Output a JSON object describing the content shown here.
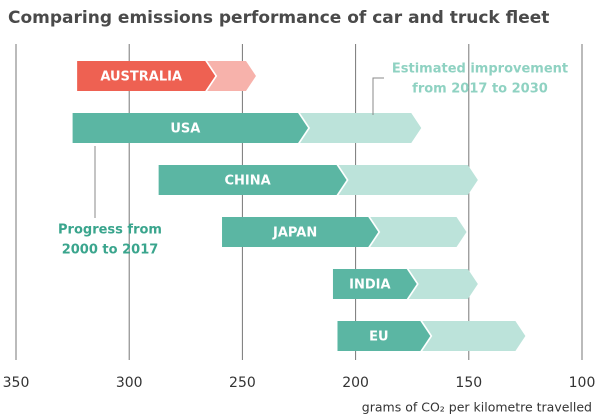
{
  "chart_data": {
    "type": "range-arrow",
    "title": "Comparing emissions performance of car and truck fleet",
    "x_label": "grams of CO₂ per kilometre travelled",
    "categories": [
      "AUSTRALIA",
      "USA",
      "CHINA",
      "JAPAN",
      "INDIA",
      "EU"
    ],
    "series": [
      {
        "name": [
          "Progress from",
          "2000 to 2017"
        ],
        "colors": [
          "#ee6152",
          "#5bb6a3",
          "#5bb6a3",
          "#5bb6a3",
          "#5bb6a3",
          "#5bb6a3"
        ],
        "from": [
          323,
          325,
          287,
          259,
          210,
          208
        ],
        "values": [
          262,
          221,
          204,
          190,
          173,
          167
        ]
      },
      {
        "name": [
          "Estimated improvement",
          "from 2017 to 2030"
        ],
        "colors": [
          "#f7b2ab",
          "#bce3da",
          "#bce3da",
          "#bce3da",
          "#bce3da",
          "#bce3da"
        ],
        "values": [
          244,
          171,
          146,
          151,
          146,
          125
        ]
      }
    ],
    "xlim": [
      350,
      100
    ],
    "xticks": [
      350,
      300,
      250,
      200,
      150,
      100
    ],
    "grid": true
  }
}
